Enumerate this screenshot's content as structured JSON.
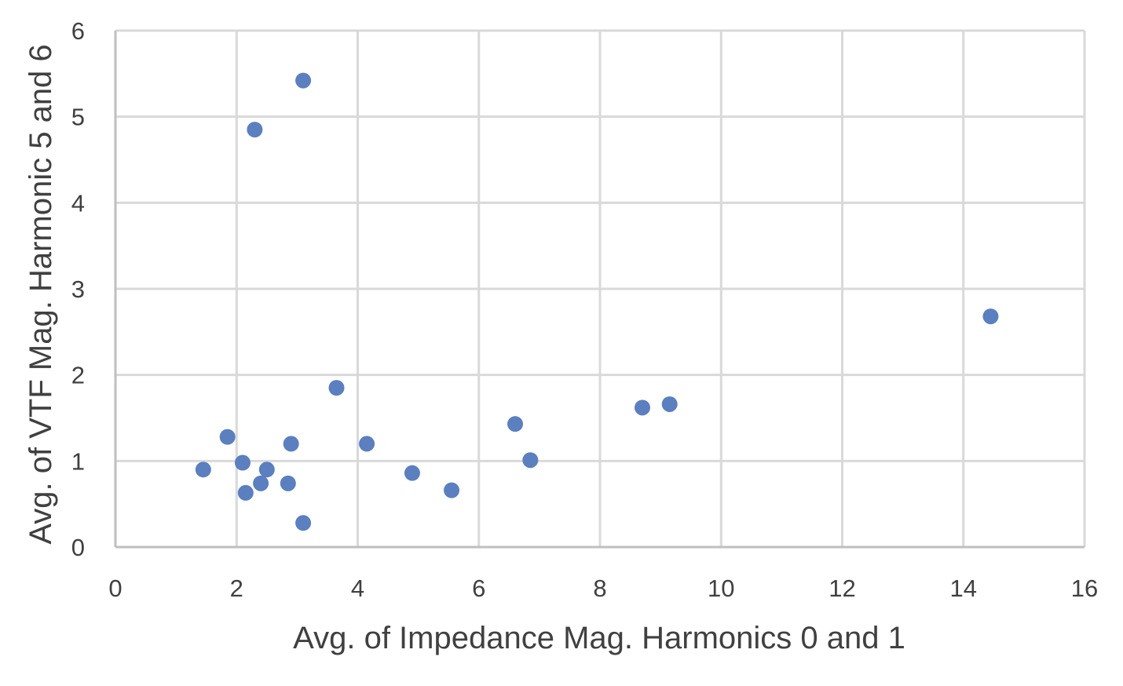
{
  "chart_data": {
    "type": "scatter",
    "title": "",
    "xlabel": "Avg. of Impedance Mag. Harmonics 0 and 1",
    "ylabel": "Avg. of VTF Mag. Harmonic 5 and 6",
    "xlim": [
      0,
      16
    ],
    "ylim": [
      0,
      6
    ],
    "x_ticks": [
      "0",
      "2",
      "4",
      "6",
      "8",
      "10",
      "12",
      "14",
      "16"
    ],
    "y_ticks": [
      "0",
      "1",
      "2",
      "3",
      "4",
      "5",
      "6"
    ],
    "grid": true,
    "legend": "none",
    "marker_color": "#5b7fbf",
    "series": [
      {
        "points": [
          {
            "x": 1.45,
            "y": 0.9
          },
          {
            "x": 1.85,
            "y": 1.28
          },
          {
            "x": 2.1,
            "y": 0.98
          },
          {
            "x": 2.15,
            "y": 0.63
          },
          {
            "x": 2.3,
            "y": 4.85
          },
          {
            "x": 2.4,
            "y": 0.74
          },
          {
            "x": 2.5,
            "y": 0.9
          },
          {
            "x": 2.85,
            "y": 0.74
          },
          {
            "x": 2.9,
            "y": 1.2
          },
          {
            "x": 3.1,
            "y": 5.42
          },
          {
            "x": 3.1,
            "y": 0.28
          },
          {
            "x": 3.65,
            "y": 1.85
          },
          {
            "x": 4.15,
            "y": 1.2
          },
          {
            "x": 4.9,
            "y": 0.86
          },
          {
            "x": 5.55,
            "y": 0.66
          },
          {
            "x": 6.6,
            "y": 1.43
          },
          {
            "x": 6.85,
            "y": 1.01
          },
          {
            "x": 8.7,
            "y": 1.62
          },
          {
            "x": 9.15,
            "y": 1.66
          },
          {
            "x": 14.45,
            "y": 2.68
          }
        ]
      }
    ]
  }
}
